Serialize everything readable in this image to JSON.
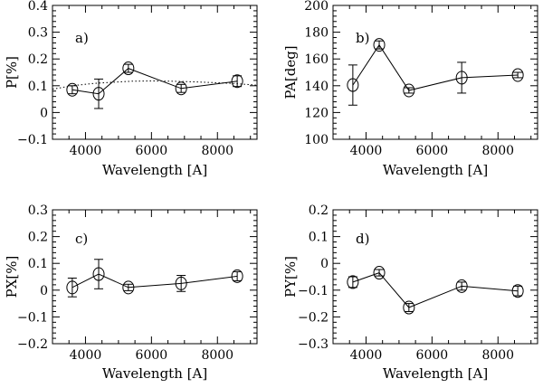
{
  "chart_data": [
    {
      "type": "line",
      "panel_label": "a)",
      "xlabel": "Wavelength [A]",
      "ylabel": "P[%]",
      "xlim": [
        3000,
        9200
      ],
      "ylim": [
        -0.1,
        0.4
      ],
      "xticks": [
        4000,
        6000,
        8000
      ],
      "xtick_labels": [
        "4000",
        "6000",
        "8000"
      ],
      "yticks": [
        -0.1,
        0,
        0.1,
        0.2,
        0.3,
        0.4
      ],
      "ytick_labels": [
        "−0.1",
        "0",
        "0.1",
        "0.2",
        "0.3",
        "0.4"
      ],
      "series": [
        {
          "x": [
            3600,
            4400,
            5300,
            6900,
            8600
          ],
          "y": [
            0.085,
            0.07,
            0.165,
            0.09,
            0.117
          ],
          "yerr": [
            0.015,
            0.055,
            0.015,
            0.015,
            0.02
          ]
        }
      ],
      "model_curve": {
        "style": "dotted",
        "x": [
          3000,
          3600,
          4200,
          4800,
          5400,
          6000,
          6600,
          7200,
          7800,
          8400,
          9000,
          9200
        ],
        "y": [
          0.087,
          0.1,
          0.108,
          0.113,
          0.117,
          0.118,
          0.117,
          0.115,
          0.112,
          0.109,
          0.104,
          0.102
        ]
      }
    },
    {
      "type": "line",
      "panel_label": "b)",
      "xlabel": "Wavelength [A]",
      "ylabel": "PA[deg]",
      "xlim": [
        3000,
        9200
      ],
      "ylim": [
        100,
        200
      ],
      "xticks": [
        4000,
        6000,
        8000
      ],
      "xtick_labels": [
        "4000",
        "6000",
        "8000"
      ],
      "yticks": [
        100,
        120,
        140,
        160,
        180,
        200
      ],
      "ytick_labels": [
        "100",
        "120",
        "140",
        "160",
        "180",
        "200"
      ],
      "series": [
        {
          "x": [
            3600,
            4400,
            5300,
            6900,
            8600
          ],
          "y": [
            140.5,
            170.5,
            136.5,
            146,
            148
          ],
          "yerr": [
            15,
            3,
            2,
            11.5,
            2
          ]
        }
      ]
    },
    {
      "type": "line",
      "panel_label": "c)",
      "xlabel": "Wavelength [A]",
      "ylabel": "PX[%]",
      "xlim": [
        3000,
        9200
      ],
      "ylim": [
        -0.2,
        0.3
      ],
      "xticks": [
        4000,
        6000,
        8000
      ],
      "xtick_labels": [
        "4000",
        "6000",
        "8000"
      ],
      "yticks": [
        -0.2,
        -0.1,
        0,
        0.1,
        0.2,
        0.3
      ],
      "ytick_labels": [
        "−0.2",
        "−0.1",
        "0",
        "0.1",
        "0.2",
        "0.3"
      ],
      "series": [
        {
          "x": [
            3600,
            4400,
            5300,
            6900,
            8600
          ],
          "y": [
            0.01,
            0.06,
            0.01,
            0.025,
            0.052
          ],
          "yerr": [
            0.035,
            0.055,
            0.012,
            0.03,
            0.017
          ]
        }
      ]
    },
    {
      "type": "line",
      "panel_label": "d)",
      "xlabel": "Wavelength [A]",
      "ylabel": "PY[%]",
      "xlim": [
        3000,
        9200
      ],
      "ylim": [
        -0.3,
        0.2
      ],
      "xticks": [
        4000,
        6000,
        8000
      ],
      "xtick_labels": [
        "4000",
        "6000",
        "8000"
      ],
      "yticks": [
        -0.3,
        -0.2,
        -0.1,
        0,
        0.1,
        0.2
      ],
      "ytick_labels": [
        "−0.3",
        "−0.2",
        "−0.1",
        "0",
        "0.1",
        "0.2"
      ],
      "series": [
        {
          "x": [
            3600,
            4400,
            5300,
            6900,
            8600
          ],
          "y": [
            -0.07,
            -0.035,
            -0.165,
            -0.085,
            -0.103
          ],
          "yerr": [
            0.02,
            0.012,
            0.015,
            0.015,
            0.018
          ]
        }
      ]
    }
  ]
}
